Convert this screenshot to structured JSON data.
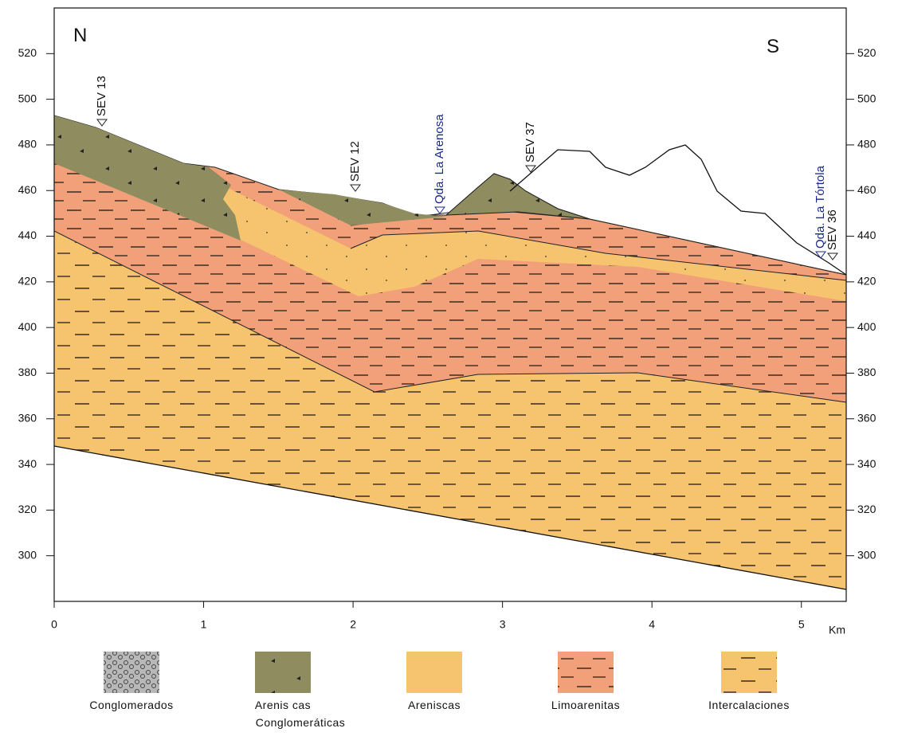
{
  "section": {
    "elevation_ticks": [
      300,
      320,
      340,
      360,
      380,
      400,
      420,
      440,
      460,
      480,
      500,
      520
    ],
    "ylim": [
      280,
      540
    ],
    "distance_ticks": [
      0,
      1,
      2,
      3,
      4,
      5
    ],
    "xlim": [
      0,
      5.3
    ],
    "unit": "Km",
    "north": "N",
    "south": "S",
    "markers": [
      {
        "label": "SEV 13"
      },
      {
        "label": "SEV 12"
      },
      {
        "label": "Qda. La Arenosa"
      },
      {
        "label": "SEV 37"
      },
      {
        "label": "Qda. La Tórtola"
      },
      {
        "label": "SEV 36"
      }
    ]
  },
  "legend": [
    {
      "label": "Conglomerados"
    },
    {
      "label": [
        "Arenis cas",
        "Conglomeráticas"
      ]
    },
    {
      "label": "Areniscas"
    },
    {
      "label": "Limoarenitas"
    },
    {
      "label": "Intercalaciones"
    }
  ]
}
